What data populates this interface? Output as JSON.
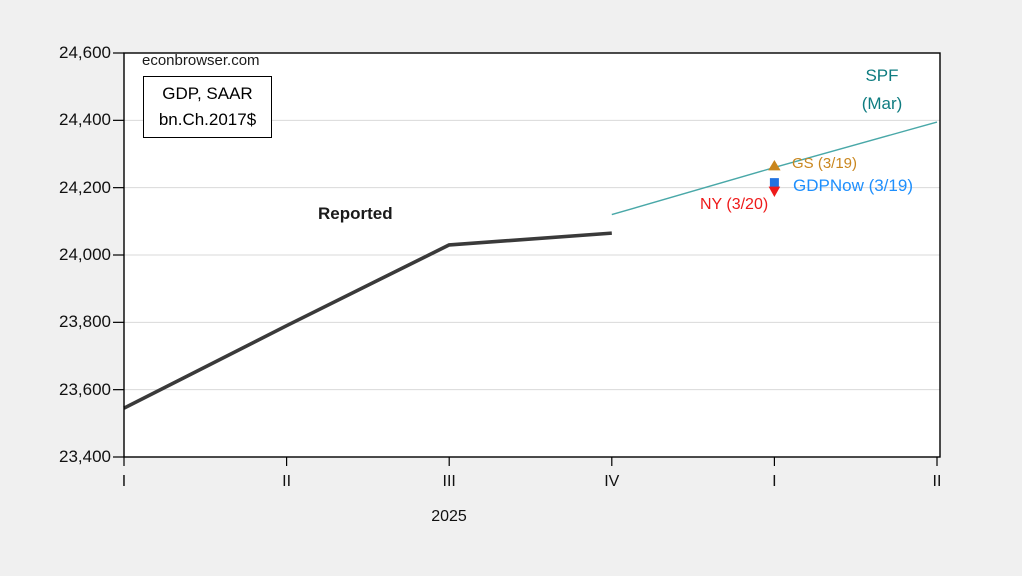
{
  "watermark": "econbrowser.com",
  "legend_box": {
    "line1": "GDP, SAAR",
    "line2": "bn.Ch.2017$"
  },
  "labels": {
    "reported": "Reported",
    "spf_line1": "SPF",
    "spf_line2": "(Mar)",
    "gs": "GS (3/19)",
    "gdpnow": "GDPNow (3/19)",
    "ny": "NY (3/20)",
    "year": "2025"
  },
  "colors": {
    "page_background": "#f0f0f0",
    "plot_background": "#ffffff",
    "axis": "#000000",
    "grid": "#d9d9d9",
    "reported_line": "#3a3a3a",
    "spf_line": "#49a8a8",
    "spf_text": "#0e7c80",
    "gs": "#c9861e",
    "gdpnow_marker": "#2273e0",
    "gdpnow_text": "#1e8ffd",
    "ny": "#ee1a1a"
  },
  "chart_data": {
    "type": "line",
    "title": "GDP, SAAR bn.Ch.2017$",
    "source_watermark": "econbrowser.com",
    "x_tick_labels": [
      "I",
      "II",
      "III",
      "IV",
      "I",
      "II"
    ],
    "x_year_label": "2025",
    "ylim": [
      23400,
      24600
    ],
    "grid": {
      "horizontal": true,
      "color": "#d9d9d9"
    },
    "legend_position": "none",
    "y_ticks": [
      {
        "value": 23400,
        "label": "23,400"
      },
      {
        "value": 23600,
        "label": "23,600"
      },
      {
        "value": 23800,
        "label": "23,800"
      },
      {
        "value": 24000,
        "label": "24,000"
      },
      {
        "value": 24200,
        "label": "24,200"
      },
      {
        "value": 24400,
        "label": "24,400"
      },
      {
        "value": 24600,
        "label": "24,600"
      }
    ],
    "series": [
      {
        "name": "Reported",
        "color": "#3a3a3a",
        "stroke_width": 3.6,
        "x_index": [
          0,
          1,
          2,
          3
        ],
        "values": [
          23545,
          23790,
          24030,
          24065
        ]
      },
      {
        "name": "SPF (Mar)",
        "color": "#49a8a8",
        "stroke_width": 1.4,
        "x_index": [
          3,
          4,
          5
        ],
        "values": [
          24120,
          24260,
          24395
        ]
      }
    ],
    "point_forecasts": [
      {
        "name": "GS (3/19)",
        "marker": "triangle-up",
        "color": "#c9861e",
        "label_color": "#c9861e",
        "x_index": 4,
        "value": 24265
      },
      {
        "name": "GDPNow (3/19)",
        "marker": "square",
        "color": "#2273e0",
        "label_color": "#1e8ffd",
        "x_index": 4,
        "value": 24215
      },
      {
        "name": "NY (3/20)",
        "marker": "triangle-down",
        "color": "#ee1a1a",
        "label_color": "#ee1a1a",
        "x_index": 4,
        "value": 24190
      }
    ]
  }
}
